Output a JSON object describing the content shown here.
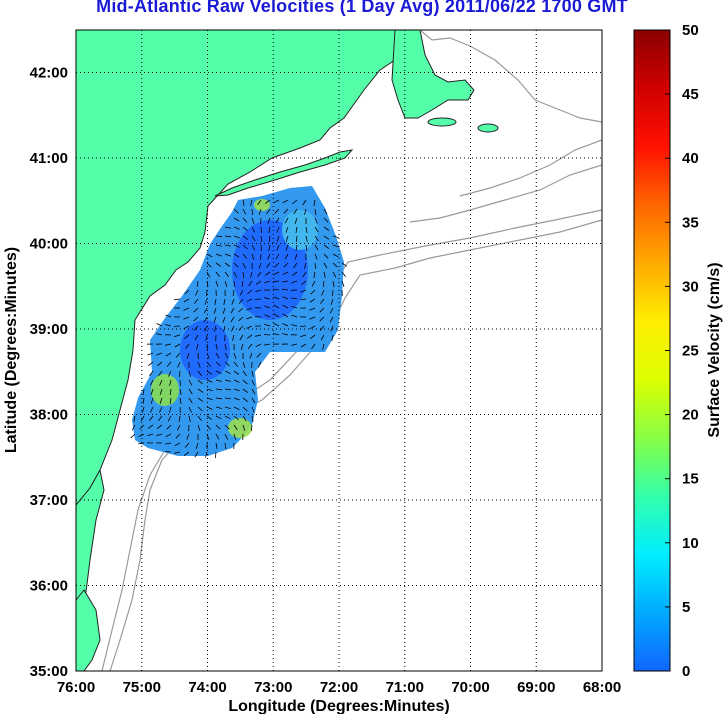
{
  "title": "Mid-Atlantic Raw Velocities (1 Day Avg) 2011/06/22 1700 GMT",
  "xlabel": "Longitude (Degrees:Minutes)",
  "ylabel": "Latitude (Degrees:Minutes)",
  "x_ticks": [
    "76:00",
    "75:00",
    "74:00",
    "73:00",
    "72:00",
    "71:00",
    "70:00",
    "69:00",
    "68:00"
  ],
  "y_ticks": [
    "35:00",
    "36:00",
    "37:00",
    "38:00",
    "39:00",
    "40:00",
    "41:00",
    "42:00"
  ],
  "colorbar": {
    "label": "Surface Velocity (cm/s)",
    "ticks": [
      "0",
      "5",
      "10",
      "15",
      "20",
      "25",
      "30",
      "35",
      "40",
      "45",
      "50"
    ],
    "stops": [
      "#1166ff",
      "#00aaff",
      "#00eeff",
      "#33ffaa",
      "#88ff44",
      "#ddff00",
      "#ffee00",
      "#ffaa00",
      "#ff6600",
      "#ff1100",
      "#d00000",
      "#8a0000"
    ]
  },
  "colors": {
    "land": "#55ffaa",
    "coastline": "#222222",
    "bathymetry": "#9a9a9a",
    "current_field": "#3399ee",
    "title": "#1a1ad6"
  },
  "chart_data": {
    "type": "map",
    "x_range": [
      "76:00W",
      "68:00W"
    ],
    "y_range": [
      "35:00N",
      "42:30N"
    ],
    "grid": "dotted",
    "colorbar_range": [
      0,
      50
    ],
    "units": "cm/s"
  }
}
